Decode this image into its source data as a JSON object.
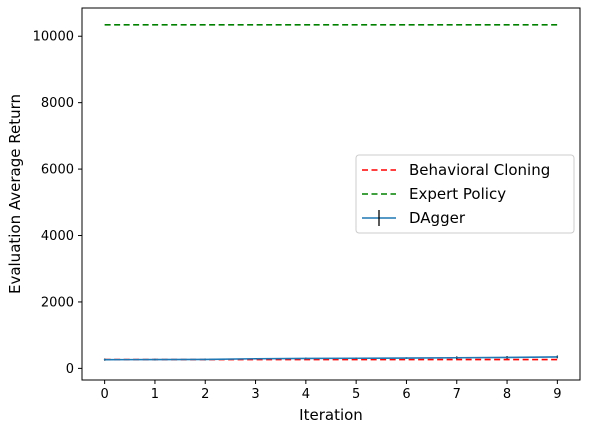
{
  "chart_data": {
    "type": "line",
    "xlabel": "Iteration",
    "ylabel": "Evaluation Average Return",
    "xlim": [
      -0.45,
      9.45
    ],
    "ylim": [
      -350,
      10850
    ],
    "xticks": [
      0,
      1,
      2,
      3,
      4,
      5,
      6,
      7,
      8,
      9
    ],
    "yticks": [
      0,
      2000,
      4000,
      6000,
      8000,
      10000
    ],
    "grid": false,
    "legend_position": "center-right",
    "series": [
      {
        "name": "Behavioral Cloning",
        "style": "dashed",
        "color": "#ff0000",
        "x": [
          0,
          9
        ],
        "y": [
          265,
          265
        ]
      },
      {
        "name": "Expert Policy",
        "style": "dashed",
        "color": "#008000",
        "x": [
          0,
          9
        ],
        "y": [
          10345,
          10345
        ]
      },
      {
        "name": "DAgger",
        "style": "solid-errorbar",
        "color": "#1f77b4",
        "x": [
          0,
          1,
          2,
          3,
          4,
          5,
          6,
          7,
          8,
          9
        ],
        "y": [
          262,
          265,
          268,
          290,
          300,
          305,
          310,
          320,
          330,
          345
        ],
        "yerr": [
          30,
          20,
          20,
          20,
          20,
          20,
          20,
          40,
          40,
          40
        ]
      }
    ]
  }
}
